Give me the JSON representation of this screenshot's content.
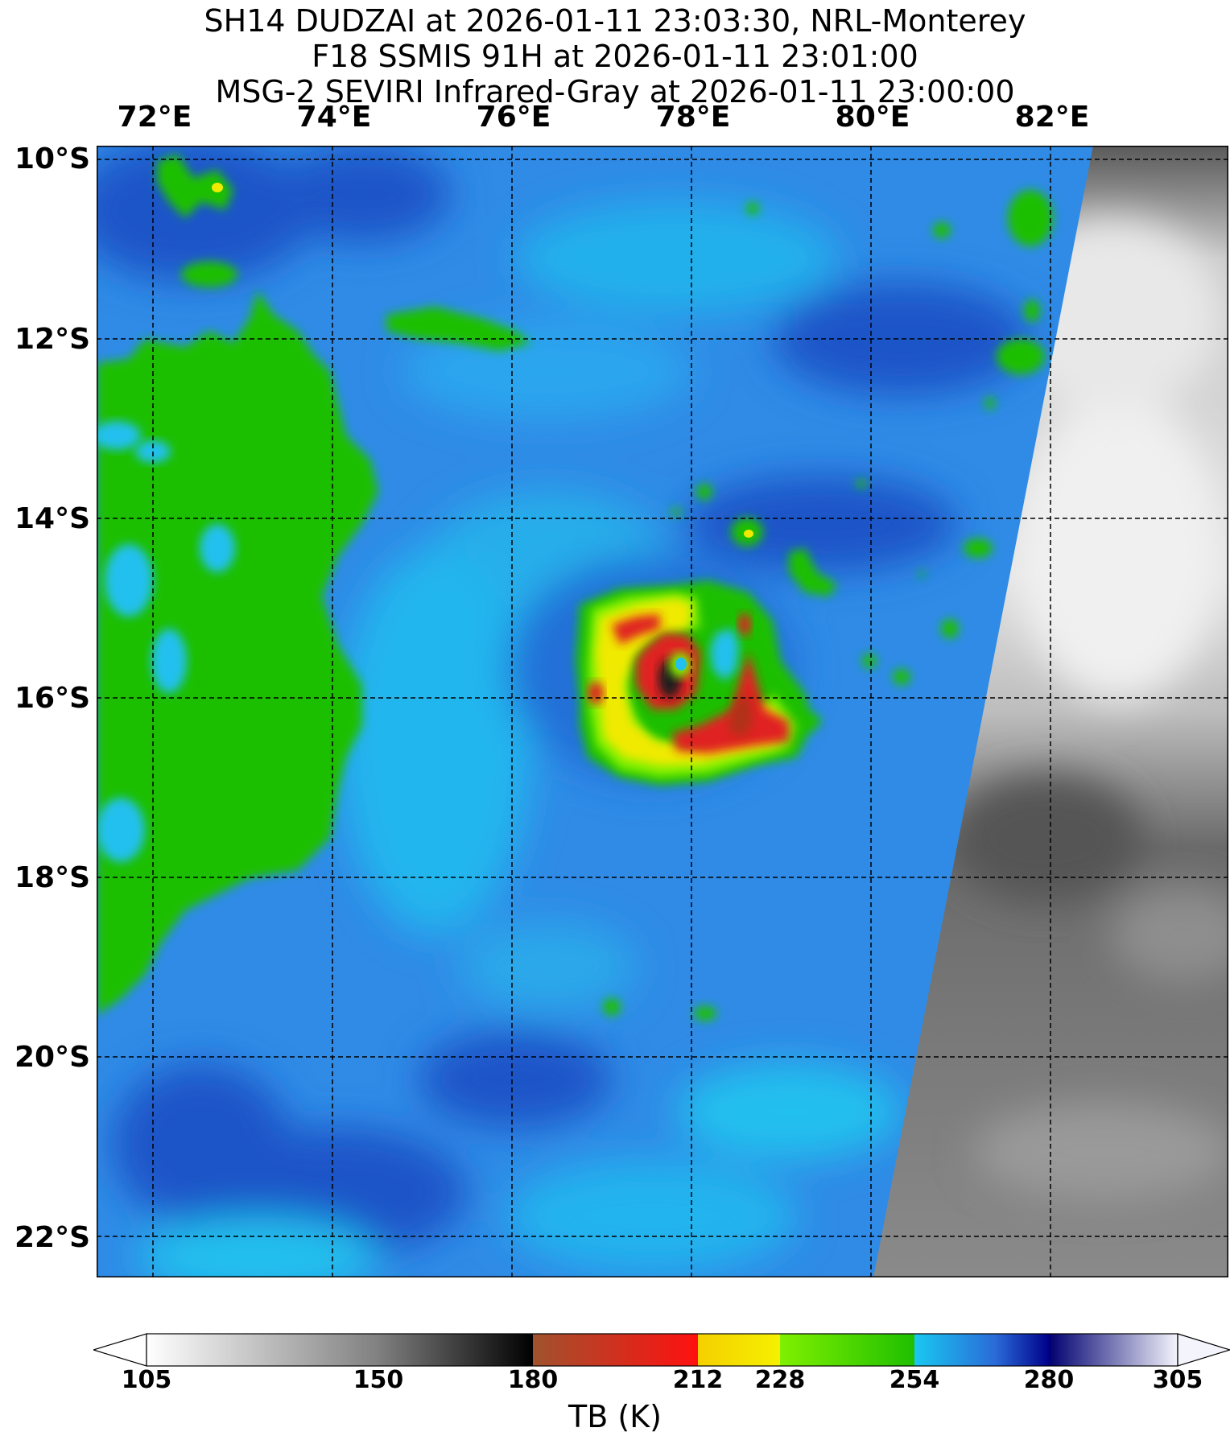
{
  "title": {
    "line1": "SH14 DUDZAI at 2026-01-11 23:03:30, NRL-Monterey",
    "line2": "F18 SSMIS 91H at 2026-01-11 23:01:00",
    "line3": "MSG-2 SEVIRI Infrared-Gray at 2026-01-11 23:00:00"
  },
  "axes": {
    "longitude_labels": [
      "72°E",
      "74°E",
      "76°E",
      "78°E",
      "80°E",
      "82°E"
    ],
    "latitude_labels": [
      "10°S",
      "12°S",
      "14°S",
      "16°S",
      "18°S",
      "20°S",
      "22°S"
    ]
  },
  "colorbar": {
    "ticks": [
      "105",
      "150",
      "180",
      "212",
      "228",
      "254",
      "280",
      "305"
    ],
    "label": "TB (K)",
    "colors": {
      "white": "#ffffff",
      "gray": "#808080",
      "black": "#000000",
      "brown": "#a0522d",
      "red": "#ff1010",
      "yellow": "#f5f000",
      "lime": "#80f000",
      "green": "#1fbf00",
      "cyan": "#19c8f0",
      "blue": "#2a6bd8",
      "navy": "#00008b",
      "lavender": "#e6e6f8"
    }
  },
  "map_colors": {
    "background_blue": "#2f8be6",
    "deep_blue": "#1f55c8",
    "cyan": "#22c0ee",
    "green": "#1fbf00",
    "yellow": "#f0ea00",
    "red": "#e02020",
    "dark_red": "#b03018",
    "black": "#1a1a1a",
    "ir_light": "#d8d8d8",
    "ir_dark": "#6a6a6a"
  }
}
